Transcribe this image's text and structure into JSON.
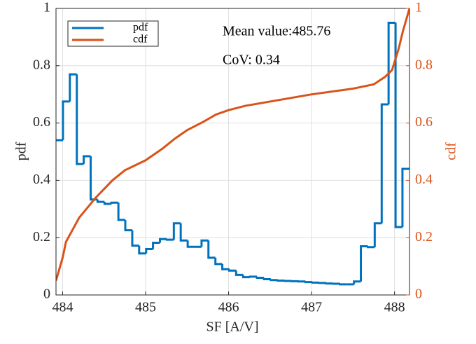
{
  "chart_data": {
    "type": "histogram",
    "xlabel": "SF [A/V]",
    "ylabel": "pdf",
    "y2label": "cdf",
    "annotations": [
      "Mean value:485.76",
      "CoV: 0.34"
    ],
    "bins": [
      483.92,
      484.004,
      484.087,
      484.171,
      484.254,
      484.338,
      484.421,
      484.505,
      484.588,
      484.672,
      484.755,
      484.839,
      484.922,
      485.006,
      485.089,
      485.173,
      485.256,
      485.34,
      485.423,
      485.507,
      485.59,
      485.674,
      485.757,
      485.841,
      485.924,
      486.008,
      486.091,
      486.175,
      486.258,
      486.342,
      486.425,
      486.509,
      486.592,
      486.676,
      486.759,
      486.843,
      486.926,
      487.01,
      487.093,
      487.177,
      487.26,
      487.344,
      487.427,
      487.511,
      487.594,
      487.678,
      487.761,
      487.845,
      487.928,
      488.012,
      488.095,
      488.179
    ],
    "series": [
      {
        "name": "pdf",
        "color": "#0072bd",
        "values": [
          0.54,
          0.675,
          0.77,
          0.457,
          0.484,
          0.333,
          0.325,
          0.318,
          0.322,
          0.262,
          0.226,
          0.172,
          0.145,
          0.16,
          0.182,
          0.195,
          0.193,
          0.25,
          0.19,
          0.168,
          0.168,
          0.19,
          0.13,
          0.108,
          0.09,
          0.085,
          0.07,
          0.062,
          0.064,
          0.06,
          0.055,
          0.052,
          0.05,
          0.049,
          0.048,
          0.047,
          0.045,
          0.043,
          0.042,
          0.04,
          0.039,
          0.037,
          0.037,
          0.047,
          0.17,
          0.167,
          0.25,
          0.665,
          0.95,
          0.237,
          0.44
        ]
      },
      {
        "name": "cdf",
        "color": "#d95319",
        "axis": "y2",
        "x": [
          483.92,
          484.0,
          484.04,
          484.2,
          484.4,
          484.6,
          484.75,
          485.0,
          485.2,
          485.35,
          485.5,
          485.7,
          485.85,
          486.0,
          486.2,
          486.5,
          487.0,
          487.5,
          487.75,
          487.88,
          487.97,
          488.05,
          488.1,
          488.18
        ],
        "values": [
          0.05,
          0.13,
          0.185,
          0.27,
          0.34,
          0.4,
          0.435,
          0.47,
          0.51,
          0.545,
          0.575,
          0.605,
          0.63,
          0.645,
          0.66,
          0.675,
          0.7,
          0.72,
          0.735,
          0.76,
          0.785,
          0.86,
          0.92,
          1
        ]
      }
    ],
    "xlim": [
      483.92,
      488.18
    ],
    "xticks": [
      484,
      485,
      486,
      487,
      488
    ],
    "ylim": [
      0,
      1
    ],
    "yticks": [
      0,
      0.2,
      0.4,
      0.6,
      0.8,
      1
    ],
    "y2lim": [
      0,
      1
    ],
    "y2ticks": [
      0,
      0.2,
      0.4,
      0.6,
      0.8,
      1
    ],
    "grid": true,
    "legend": "top-left"
  }
}
